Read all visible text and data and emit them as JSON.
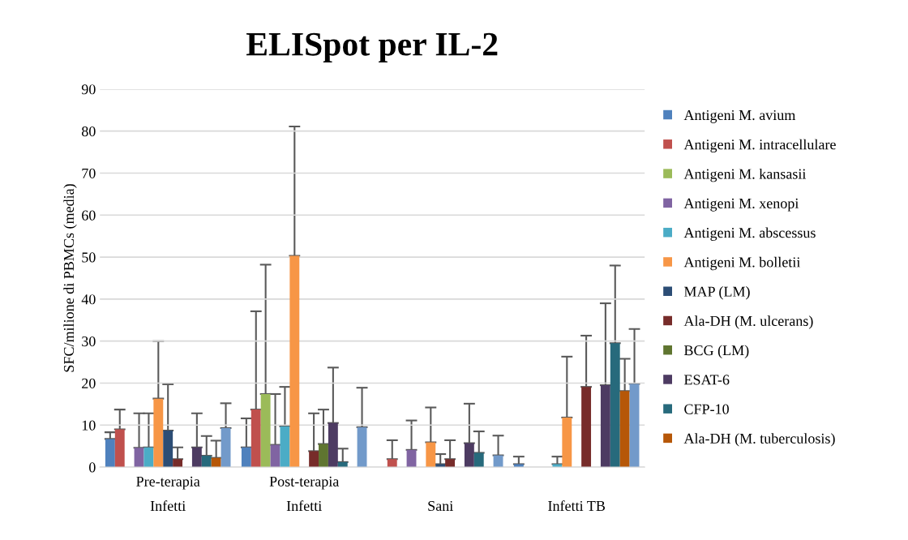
{
  "chart_data": {
    "type": "bar",
    "title": "ELISpot per IL-2",
    "ylabel": "SFC/milione di PBMCs (media)",
    "categories": [
      "Pre-terapia\nInfetti",
      "Post-terapia\nInfetti",
      "\nSani",
      "\nInfetti TB"
    ],
    "ylim": [
      0,
      90
    ],
    "yticks": [
      0,
      10,
      20,
      30,
      40,
      50,
      60,
      70,
      80,
      90
    ],
    "grid": "y",
    "legend": "right",
    "series": [
      {
        "name": "Antigeni M. avium",
        "color": "#4f81bd",
        "values": [
          6.7,
          4.7,
          0,
          0.7
        ],
        "errors": [
          [
            6.7,
            8.3
          ],
          [
            4.7,
            11.6
          ],
          null,
          [
            0.7,
            2.5
          ]
        ]
      },
      {
        "name": "Antigeni M. intracellulare",
        "color": "#c0504d",
        "values": [
          9.0,
          13.7,
          1.9,
          0
        ],
        "errors": [
          [
            9.0,
            13.7
          ],
          [
            13.7,
            37.1
          ],
          [
            1.9,
            6.4
          ],
          null
        ]
      },
      {
        "name": "Antigeni M. kansasii",
        "color": "#9bbb59",
        "values": [
          0,
          17.4,
          0,
          0
        ],
        "errors": [
          null,
          [
            17.4,
            48.2
          ],
          null,
          null
        ]
      },
      {
        "name": "Antigeni M. xenopi",
        "color": "#8064a2",
        "values": [
          4.6,
          5.3,
          4.1,
          0
        ],
        "errors": [
          [
            4.6,
            12.8
          ],
          [
            5.3,
            17.4
          ],
          [
            4.1,
            11.1
          ],
          null
        ]
      },
      {
        "name": "Antigeni M. abscessus",
        "color": "#4bacc6",
        "values": [
          4.7,
          9.7,
          0,
          0.7
        ],
        "errors": [
          [
            4.7,
            12.8
          ],
          [
            9.7,
            19.1
          ],
          null,
          [
            0.7,
            2.5
          ]
        ]
      },
      {
        "name": "Antigeni M. bolletii",
        "color": "#f79646",
        "values": [
          16.3,
          50.3,
          5.9,
          11.8
        ],
        "errors": [
          [
            16.3,
            30.0
          ],
          [
            50.3,
            81.1
          ],
          [
            5.9,
            14.2
          ],
          [
            11.8,
            26.3
          ]
        ]
      },
      {
        "name": "MAP (LM)",
        "color": "#2c4d75",
        "values": [
          8.7,
          0,
          0.7,
          0
        ],
        "errors": [
          [
            8.7,
            19.7
          ],
          null,
          [
            0.7,
            3.1
          ],
          null
        ]
      },
      {
        "name": "Ala-DH (M. ulcerans)",
        "color": "#772c2a",
        "values": [
          1.9,
          3.8,
          1.9,
          19.1
        ],
        "errors": [
          [
            1.9,
            4.7
          ],
          [
            3.8,
            12.8
          ],
          [
            1.9,
            6.4
          ],
          [
            19.1,
            31.3
          ]
        ]
      },
      {
        "name": "BCG (LM)",
        "color": "#5f7530",
        "values": [
          0,
          5.5,
          0,
          0
        ],
        "errors": [
          null,
          [
            5.5,
            13.7
          ],
          null,
          null
        ]
      },
      {
        "name": "ESAT-6",
        "color": "#4d3b62",
        "values": [
          4.7,
          10.5,
          5.7,
          19.5
        ],
        "errors": [
          [
            4.7,
            12.8
          ],
          [
            10.5,
            23.7
          ],
          [
            5.7,
            15.1
          ],
          [
            19.5,
            39.0
          ]
        ]
      },
      {
        "name": "CFP-10",
        "color": "#276a7c",
        "values": [
          2.7,
          1.2,
          3.4,
          29.5
        ],
        "errors": [
          [
            2.7,
            7.4
          ],
          [
            1.2,
            4.4
          ],
          [
            3.4,
            8.5
          ],
          [
            29.5,
            48.0
          ]
        ]
      },
      {
        "name": "Ala-DH (M. tuberculosis)",
        "color": "#b65708",
        "values": [
          2.2,
          0,
          0,
          18.1
        ],
        "errors": [
          [
            2.2,
            6.3
          ],
          null,
          null,
          [
            18.1,
            25.8
          ]
        ]
      },
      {
        "color": "#729aca",
        "values": [
          9.3,
          9.5,
          2.8,
          19.8
        ],
        "errors": [
          [
            9.3,
            15.2
          ],
          [
            9.5,
            18.9
          ],
          [
            2.8,
            7.5
          ],
          [
            19.8,
            32.9
          ]
        ]
      }
    ]
  }
}
